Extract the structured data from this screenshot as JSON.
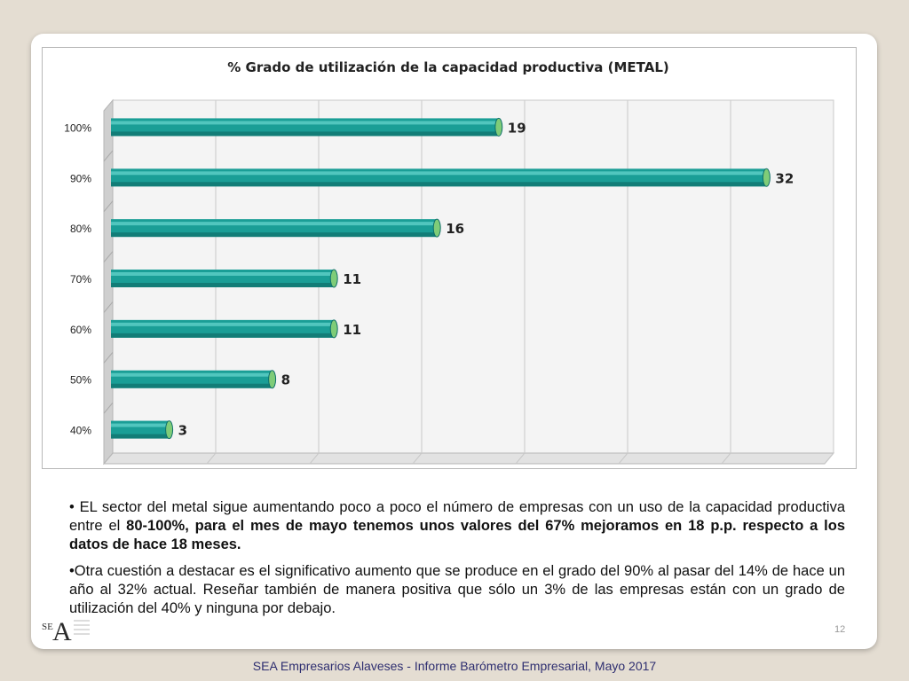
{
  "chart_data": {
    "type": "bar",
    "orientation": "horizontal",
    "style": "3d-cylinder",
    "title": "% Grado de utilización de la capacidad productiva (METAL)",
    "categories": [
      "100%",
      "90%",
      "80%",
      "70%",
      "60%",
      "50%",
      "40%"
    ],
    "values": [
      19,
      32,
      16,
      11,
      11,
      8,
      3
    ],
    "xlim": [
      0,
      35
    ],
    "grid": true,
    "bar_color": "#1a9e96"
  },
  "text": {
    "bullet1_a": "• EL sector del metal sigue aumentando poco a poco el número de empresas con un uso de la capacidad productiva entre el ",
    "bullet1_b": "80-100%, para el mes de mayo tenemos unos valores del 67% mejoramos en 18 p.p. respecto a los datos de hace 18 meses.",
    "bullet2": "•Otra cuestión a destacar es el significativo aumento que se produce en el grado del 90% al pasar del 14% de hace un año al 32% actual. Reseñar también de manera positiva que sólo un 3% de las empresas están con un grado de utilización del 40% y ninguna por debajo."
  },
  "page_number": "12",
  "footer": "SEA Empresarios Alaveses  -  Informe Barómetro Empresarial, Mayo 2017",
  "logo": {
    "letters": "SEA"
  }
}
